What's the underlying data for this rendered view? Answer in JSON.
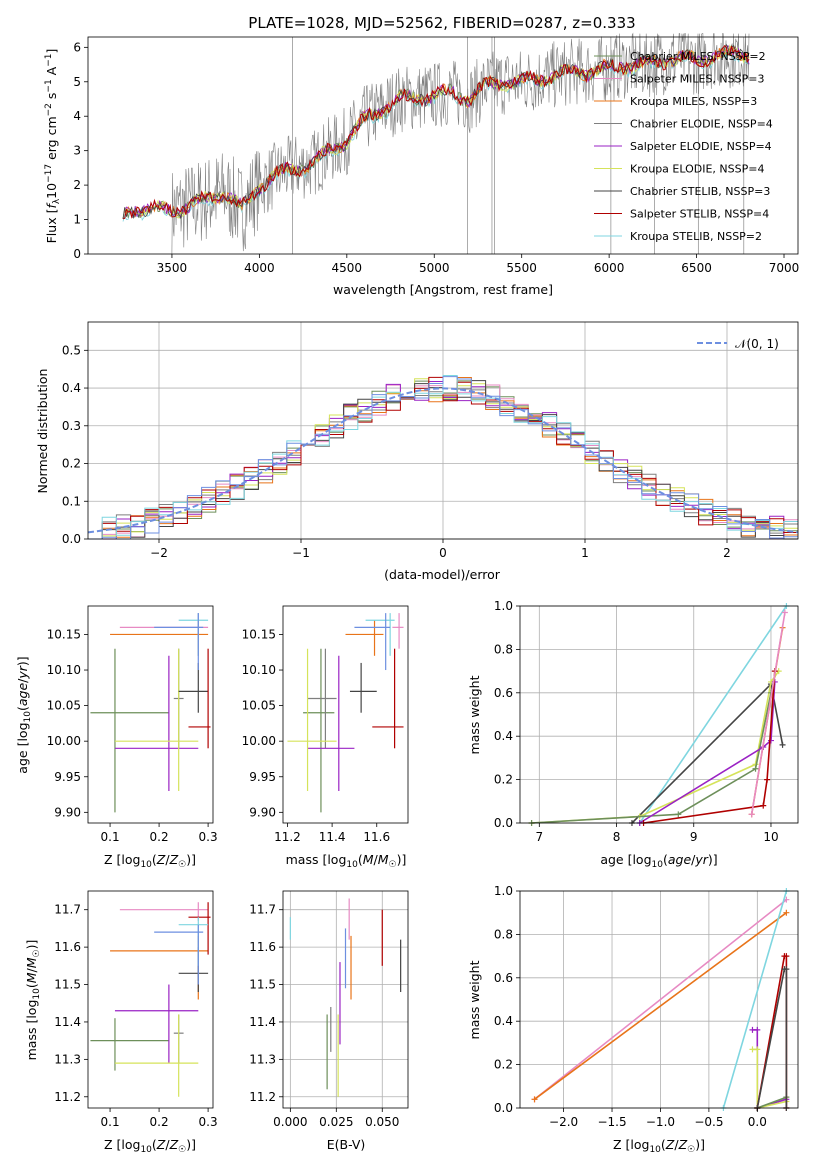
{
  "figure": {
    "title": "PLATE=1028, MJD=52562, FIBERID=0287, z=0.333"
  },
  "colors": {
    "chabrier_miles": "#6d8f5a",
    "salpeter_miles": "#e78ac3",
    "kroupa_miles": "#e8741a",
    "chabrier_elodie": "#7f7f7f",
    "salpeter_elodie": "#9a22c4",
    "kroupa_elodie": "#d5e35a",
    "chabrier_stelib": "#444444",
    "salpeter_stelib": "#b00000",
    "kroupa_stelib": "#7fd6e0",
    "extra_blue": "#6d8fe0",
    "gauss": "#6d8fe0"
  },
  "chart_data": [
    {
      "id": "spectrum",
      "type": "line",
      "xlabel": "wavelength [Angstrom, rest frame]",
      "ylabel": "Flux [fλ10⁻¹⁷ erg cm⁻² s⁻¹ A⁻¹]",
      "xlim": [
        3020,
        7080
      ],
      "ylim": [
        0,
        6.3
      ],
      "xticks": [
        "3500",
        "4000",
        "4500",
        "5000",
        "5500",
        "6000",
        "6500",
        "7000"
      ],
      "yticks": [
        "0",
        "1",
        "2",
        "3",
        "4",
        "5",
        "6"
      ],
      "legend_position": "upper-right",
      "series": [
        {
          "name": "Chabrier MILES, NSSP=2",
          "color_key": "chabrier_miles"
        },
        {
          "name": "Salpeter MILES, NSSP=3",
          "color_key": "salpeter_miles"
        },
        {
          "name": "Kroupa MILES, NSSP=3",
          "color_key": "kroupa_miles"
        },
        {
          "name": "Chabrier ELODIE, NSSP=4",
          "color_key": "chabrier_elodie"
        },
        {
          "name": "Salpeter ELODIE, NSSP=4",
          "color_key": "salpeter_elodie"
        },
        {
          "name": "Kroupa ELODIE, NSSP=4",
          "color_key": "kroupa_elodie"
        },
        {
          "name": "Chabrier STELIB, NSSP=3",
          "color_key": "chabrier_stelib"
        },
        {
          "name": "Salpeter STELIB, NSSP=4",
          "color_key": "salpeter_stelib"
        },
        {
          "name": "Kroupa STELIB, NSSP=2",
          "color_key": "kroupa_stelib"
        }
      ],
      "continuum": [
        [
          3220,
          1.1
        ],
        [
          3300,
          1.35
        ],
        [
          3400,
          1.3
        ],
        [
          3500,
          1.25
        ],
        [
          3600,
          1.4
        ],
        [
          3700,
          1.6
        ],
        [
          3800,
          1.8
        ],
        [
          3900,
          1.3
        ],
        [
          4000,
          2.0
        ],
        [
          4100,
          2.3
        ],
        [
          4200,
          2.5
        ],
        [
          4300,
          2.6
        ],
        [
          4400,
          3.0
        ],
        [
          4500,
          3.3
        ],
        [
          4600,
          3.9
        ],
        [
          4700,
          4.2
        ],
        [
          4800,
          4.5
        ],
        [
          4900,
          4.55
        ],
        [
          5000,
          4.6
        ],
        [
          5100,
          4.7
        ],
        [
          5200,
          4.5
        ],
        [
          5300,
          4.9
        ],
        [
          5400,
          5.0
        ],
        [
          5500,
          5.0
        ],
        [
          5600,
          5.1
        ],
        [
          5700,
          5.2
        ],
        [
          5800,
          5.3
        ],
        [
          5900,
          5.3
        ],
        [
          6000,
          5.4
        ],
        [
          6100,
          5.5
        ],
        [
          6200,
          5.5
        ],
        [
          6300,
          5.6
        ],
        [
          6400,
          5.7
        ],
        [
          6500,
          5.6
        ],
        [
          6600,
          5.8
        ],
        [
          6700,
          5.8
        ],
        [
          6800,
          5.8
        ]
      ]
    },
    {
      "id": "residuals",
      "type": "line",
      "xlabel": "(data-model)/error",
      "ylabel": "Normed distribution",
      "xlim": [
        -2.5,
        2.5
      ],
      "ylim": [
        0,
        0.575
      ],
      "xticks": [
        "−2",
        "−1",
        "0",
        "1",
        "2"
      ],
      "yticks": [
        "0.0",
        "0.1",
        "0.2",
        "0.3",
        "0.4",
        "0.5"
      ],
      "grid": true,
      "legend_position": "upper-right",
      "legend_label": "𝒩(0, 1)"
    },
    {
      "id": "age_vs_Z",
      "type": "scatter",
      "xlabel": "Z [log₁₀(Z/Z☉)]",
      "ylabel": "age  [log₁₀(age/yr)]",
      "xlim": [
        0.055,
        0.31
      ],
      "ylim": [
        9.885,
        10.19
      ],
      "xticks": [
        "0.1",
        "0.2",
        "0.3"
      ],
      "yticks": [
        "9.90",
        "9.95",
        "10.00",
        "10.05",
        "10.10",
        "10.15"
      ]
    },
    {
      "id": "age_vs_mass",
      "type": "scatter",
      "xlabel": "mass [log₁₀(M/M☉)]",
      "xlim": [
        11.18,
        11.74
      ],
      "ylim": [
        9.885,
        10.19
      ],
      "xticks": [
        "11.2",
        "11.4",
        "11.6"
      ],
      "yticks": [
        "9.90",
        "9.95",
        "10.00",
        "10.05",
        "10.10",
        "10.15"
      ]
    },
    {
      "id": "mw_vs_age",
      "type": "line",
      "xlabel": "age  [log₁₀(age/yr)]",
      "ylabel": "mass weight",
      "xlim": [
        6.75,
        10.35
      ],
      "ylim": [
        0,
        1.0
      ],
      "grid": true,
      "xticks": [
        "7",
        "8",
        "9",
        "10"
      ],
      "yticks": [
        "0.0",
        "0.2",
        "0.4",
        "0.6",
        "0.8",
        "1.0"
      ]
    },
    {
      "id": "mass_vs_Z",
      "type": "scatter",
      "xlabel": "Z [log₁₀(Z/Z☉)]",
      "ylabel": "mass [log₁₀(M/M☉)]",
      "xlim": [
        0.055,
        0.31
      ],
      "ylim": [
        11.17,
        11.75
      ],
      "xticks": [
        "0.1",
        "0.2",
        "0.3"
      ],
      "yticks": [
        "11.2",
        "11.3",
        "11.4",
        "11.5",
        "11.6",
        "11.7"
      ]
    },
    {
      "id": "mass_vs_ebv",
      "type": "scatter",
      "xlabel": "E(B-V)",
      "grid": true,
      "xlim": [
        -0.004,
        0.064
      ],
      "ylim": [
        11.17,
        11.75
      ],
      "xticks": [
        "0.000",
        "0.025",
        "0.050"
      ],
      "yticks": [
        "11.2",
        "11.3",
        "11.4",
        "11.5",
        "11.6",
        "11.7"
      ]
    },
    {
      "id": "mw_vs_Z",
      "type": "line",
      "xlabel": "Z [log₁₀(Z/Z☉)]",
      "ylabel": "mass weight",
      "xlim": [
        -2.45,
        0.42
      ],
      "ylim": [
        0,
        1.0
      ],
      "grid": true,
      "xticks": [
        "−2.0",
        "−1.5",
        "−1.0",
        "−0.5",
        "0.0"
      ],
      "yticks": [
        "0.0",
        "0.2",
        "0.4",
        "0.6",
        "0.8",
        "1.0"
      ]
    }
  ],
  "fits": [
    {
      "color_key": "chabrier_miles",
      "Z": 0.11,
      "Zlo": 0.06,
      "Zhi": 0.22,
      "age": 10.04,
      "alo": 9.9,
      "ahi": 10.13,
      "mass": 11.35,
      "mlo": 11.27,
      "mhi": 11.41,
      "ebv": 0.02,
      "elo": 11.22,
      "ehi": 11.42
    },
    {
      "color_key": "salpeter_miles",
      "Z": 0.28,
      "Zlo": 0.12,
      "Zhi": 0.3,
      "age": 10.16,
      "alo": 10.13,
      "ahi": 10.18,
      "mass": 11.7,
      "mlo": 11.67,
      "mhi": 11.72,
      "ebv": 0.032,
      "elo": 11.62,
      "ehi": 11.73
    },
    {
      "color_key": "kroupa_miles",
      "Z": 0.28,
      "Zlo": 0.1,
      "Zhi": 0.3,
      "age": 10.15,
      "alo": 10.12,
      "ahi": 10.17,
      "mass": 11.59,
      "mlo": 11.46,
      "mhi": 11.63,
      "ebv": 0.033,
      "elo": 11.46,
      "ehi": 11.63
    },
    {
      "color_key": "chabrier_elodie",
      "Z": 0.24,
      "Zlo": 0.23,
      "Zhi": 0.25,
      "age": 10.06,
      "alo": 9.99,
      "ahi": 10.13,
      "mass": 11.37,
      "mlo": 11.29,
      "mhi": 11.42,
      "ebv": 0.022,
      "elo": 11.32,
      "ehi": 11.44
    },
    {
      "color_key": "salpeter_elodie",
      "Z": 0.22,
      "Zlo": 0.11,
      "Zhi": 0.28,
      "age": 9.99,
      "alo": 9.93,
      "ahi": 10.12,
      "mass": 11.43,
      "mlo": 11.29,
      "mhi": 11.5,
      "ebv": 0.027,
      "elo": 11.34,
      "ehi": 11.56
    },
    {
      "color_key": "kroupa_elodie",
      "Z": 0.24,
      "Zlo": 0.11,
      "Zhi": 0.28,
      "age": 10.0,
      "alo": 9.93,
      "ahi": 10.13,
      "mass": 11.29,
      "mlo": 11.2,
      "mhi": 11.42,
      "ebv": 0.026,
      "elo": 11.2,
      "ehi": 11.42
    },
    {
      "color_key": "chabrier_stelib",
      "Z": 0.28,
      "Zlo": 0.24,
      "Zhi": 0.3,
      "age": 10.07,
      "alo": 10.04,
      "ahi": 10.11,
      "mass": 11.53,
      "mlo": 11.48,
      "mhi": 11.6,
      "ebv": 0.06,
      "elo": 11.48,
      "ehi": 11.62
    },
    {
      "color_key": "salpeter_stelib",
      "Z": 0.3,
      "Zlo": 0.26,
      "Zhi": 0.305,
      "age": 10.02,
      "alo": 9.99,
      "ahi": 10.13,
      "mass": 11.68,
      "mlo": 11.58,
      "mhi": 11.72,
      "ebv": 0.05,
      "elo": 11.55,
      "ehi": 11.7
    },
    {
      "color_key": "kroupa_stelib",
      "Z": 0.28,
      "Zlo": 0.24,
      "Zhi": 0.3,
      "age": 10.17,
      "alo": 10.12,
      "ahi": 10.18,
      "mass": 11.66,
      "mlo": 11.55,
      "mhi": 11.68,
      "ebv": 0.0,
      "elo": 11.62,
      "ehi": 11.68
    },
    {
      "color_key": "extra_blue",
      "Z": 0.28,
      "Zlo": 0.19,
      "Zhi": 0.29,
      "age": 10.16,
      "alo": 10.1,
      "ahi": 10.18,
      "mass": 11.64,
      "mlo": 11.5,
      "mhi": 11.66,
      "ebv": 0.03,
      "elo": 11.49,
      "ehi": 11.65
    }
  ],
  "mw_age_lines": [
    {
      "color_key": "kroupa_stelib",
      "pts": [
        [
          8.3,
          0.0
        ],
        [
          10.2,
          1.0
        ]
      ]
    },
    {
      "color_key": "chabrier_stelib",
      "pts": [
        [
          8.2,
          0.0
        ],
        [
          10.0,
          0.64
        ],
        [
          10.15,
          0.36
        ]
      ]
    },
    {
      "color_key": "kroupa_elodie",
      "pts": [
        [
          6.9,
          0.0
        ],
        [
          8.3,
          0.03
        ],
        [
          9.8,
          0.27
        ],
        [
          10.0,
          0.65
        ],
        [
          10.1,
          0.7
        ]
      ]
    },
    {
      "color_key": "chabrier_miles",
      "pts": [
        [
          6.9,
          0.0
        ],
        [
          8.8,
          0.04
        ],
        [
          9.8,
          0.25
        ],
        [
          10.0,
          0.6
        ]
      ]
    },
    {
      "color_key": "salpeter_elodie",
      "pts": [
        [
          8.3,
          0.0
        ],
        [
          9.9,
          0.35
        ],
        [
          10.0,
          0.38
        ],
        [
          10.05,
          0.65
        ]
      ]
    },
    {
      "color_key": "salpeter_stelib",
      "pts": [
        [
          8.35,
          0.0
        ],
        [
          9.9,
          0.08
        ],
        [
          9.95,
          0.2
        ],
        [
          10.05,
          0.7
        ]
      ]
    },
    {
      "color_key": "kroupa_miles",
      "pts": [
        [
          9.75,
          0.04
        ],
        [
          10.15,
          0.9
        ]
      ]
    },
    {
      "color_key": "salpeter_miles",
      "pts": [
        [
          9.75,
          0.04
        ],
        [
          10.18,
          0.97
        ]
      ]
    }
  ],
  "mw_Z_lines": [
    {
      "color_key": "salpeter_miles",
      "pts": [
        [
          -2.3,
          0.04
        ],
        [
          0.3,
          0.96
        ]
      ]
    },
    {
      "color_key": "kroupa_miles",
      "pts": [
        [
          -2.3,
          0.04
        ],
        [
          0.3,
          0.9
        ]
      ]
    },
    {
      "color_key": "kroupa_stelib",
      "pts": [
        [
          -0.35,
          0.0
        ],
        [
          0.3,
          1.0
        ]
      ]
    },
    {
      "color_key": "salpeter_elodie",
      "pts": [
        [
          -0.05,
          0.36
        ],
        [
          0.0,
          0.36
        ],
        [
          0.0,
          0.0
        ],
        [
          0.3,
          0.04
        ]
      ]
    },
    {
      "color_key": "kroupa_elodie",
      "pts": [
        [
          -0.05,
          0.27
        ],
        [
          0.0,
          0.27
        ],
        [
          0.0,
          0.0
        ],
        [
          0.3,
          0.03
        ]
      ]
    },
    {
      "color_key": "chabrier_miles",
      "pts": [
        [
          0.0,
          0.0
        ],
        [
          0.3,
          0.05
        ]
      ]
    },
    {
      "color_key": "salpeter_stelib",
      "pts": [
        [
          0.0,
          0.0
        ],
        [
          0.28,
          0.7
        ],
        [
          0.3,
          0.7
        ],
        [
          0.3,
          0.0
        ]
      ]
    },
    {
      "color_key": "chabrier_stelib",
      "pts": [
        [
          0.0,
          0.0
        ],
        [
          0.28,
          0.64
        ],
        [
          0.3,
          0.64
        ],
        [
          0.3,
          0.0
        ]
      ]
    }
  ]
}
